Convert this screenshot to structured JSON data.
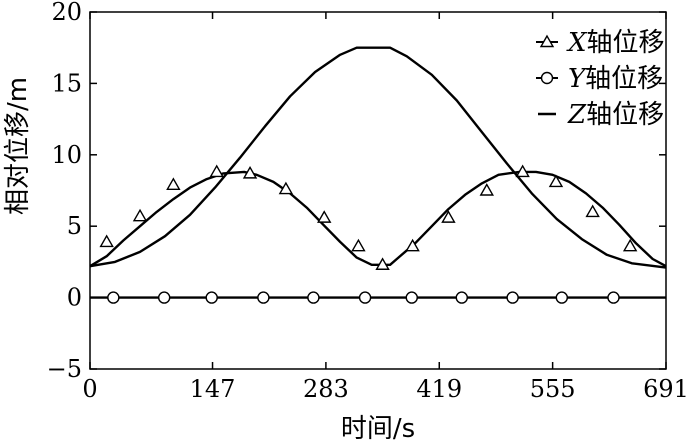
{
  "chart_data": {
    "type": "line",
    "xlabel": "时间/s",
    "ylabel": "相对位移/m",
    "xlim": [
      0,
      691
    ],
    "ylim": [
      -5,
      20
    ],
    "xticks": [
      0,
      147,
      283,
      419,
      555,
      691
    ],
    "xtick_labels": [
      "0",
      "147",
      "283",
      "419",
      "555",
      "691"
    ],
    "yticks": [
      -5,
      0,
      5,
      10,
      15,
      20
    ],
    "ytick_labels": [
      "−5",
      "0",
      "5",
      "10",
      "15",
      "20"
    ],
    "grid": false,
    "legend_position": "top-right",
    "series": [
      {
        "name": "X轴位移",
        "legend_letter": "X",
        "legend_suffix": "轴位移",
        "marker": "triangle",
        "color": "#000000",
        "curve": [
          [
            0,
            2.2
          ],
          [
            20,
            2.9
          ],
          [
            40,
            4.0
          ],
          [
            60,
            5.0
          ],
          [
            80,
            6.0
          ],
          [
            100,
            6.9
          ],
          [
            120,
            7.7
          ],
          [
            140,
            8.3
          ],
          [
            160,
            8.7
          ],
          [
            185,
            8.8
          ],
          [
            200,
            8.6
          ],
          [
            220,
            8.1
          ],
          [
            240,
            7.3
          ],
          [
            260,
            6.3
          ],
          [
            280,
            5.1
          ],
          [
            300,
            3.9
          ],
          [
            320,
            2.8
          ],
          [
            338,
            2.3
          ],
          [
            350,
            2.3
          ],
          [
            360,
            2.3
          ],
          [
            370,
            2.8
          ],
          [
            390,
            3.8
          ],
          [
            410,
            5.0
          ],
          [
            430,
            6.2
          ],
          [
            450,
            7.2
          ],
          [
            470,
            8.0
          ],
          [
            490,
            8.6
          ],
          [
            515,
            8.8
          ],
          [
            535,
            8.8
          ],
          [
            555,
            8.6
          ],
          [
            575,
            8.1
          ],
          [
            595,
            7.3
          ],
          [
            615,
            6.3
          ],
          [
            635,
            5.1
          ],
          [
            655,
            3.8
          ],
          [
            675,
            2.7
          ],
          [
            691,
            2.2
          ]
        ],
        "markers": [
          [
            20,
            3.9
          ],
          [
            60,
            5.7
          ],
          [
            100,
            7.9
          ],
          [
            152,
            8.8
          ],
          [
            192,
            8.7
          ],
          [
            235,
            7.6
          ],
          [
            281,
            5.6
          ],
          [
            322,
            3.6
          ],
          [
            351,
            2.3
          ],
          [
            387,
            3.6
          ],
          [
            430,
            5.6
          ],
          [
            476,
            7.5
          ],
          [
            519,
            8.8
          ],
          [
            559,
            8.1
          ],
          [
            603,
            6.0
          ],
          [
            648,
            3.6
          ]
        ]
      },
      {
        "name": "Y轴位移",
        "legend_letter": "Y",
        "legend_suffix": "轴位移",
        "marker": "circle",
        "color": "#000000",
        "curve": [
          [
            0,
            0
          ],
          [
            691,
            0
          ]
        ],
        "markers": [
          [
            28,
            0
          ],
          [
            89,
            0
          ],
          [
            146,
            0
          ],
          [
            208,
            0
          ],
          [
            268,
            0
          ],
          [
            330,
            0
          ],
          [
            386,
            0
          ],
          [
            446,
            0
          ],
          [
            507,
            0
          ],
          [
            566,
            0
          ],
          [
            628,
            0
          ]
        ]
      },
      {
        "name": "Z轴位移",
        "legend_letter": "Z",
        "legend_suffix": "轴位移",
        "marker": "none",
        "color": "#000000",
        "curve": [
          [
            0,
            2.2
          ],
          [
            30,
            2.5
          ],
          [
            60,
            3.2
          ],
          [
            90,
            4.3
          ],
          [
            120,
            5.8
          ],
          [
            150,
            7.7
          ],
          [
            180,
            9.8
          ],
          [
            210,
            12.0
          ],
          [
            240,
            14.1
          ],
          [
            270,
            15.8
          ],
          [
            300,
            17.0
          ],
          [
            320,
            17.5
          ],
          [
            345,
            17.5
          ],
          [
            360,
            17.5
          ],
          [
            380,
            16.9
          ],
          [
            410,
            15.6
          ],
          [
            440,
            13.8
          ],
          [
            470,
            11.6
          ],
          [
            500,
            9.4
          ],
          [
            530,
            7.3
          ],
          [
            560,
            5.5
          ],
          [
            590,
            4.1
          ],
          [
            620,
            3.0
          ],
          [
            650,
            2.4
          ],
          [
            691,
            2.1
          ]
        ],
        "markers": []
      }
    ]
  }
}
